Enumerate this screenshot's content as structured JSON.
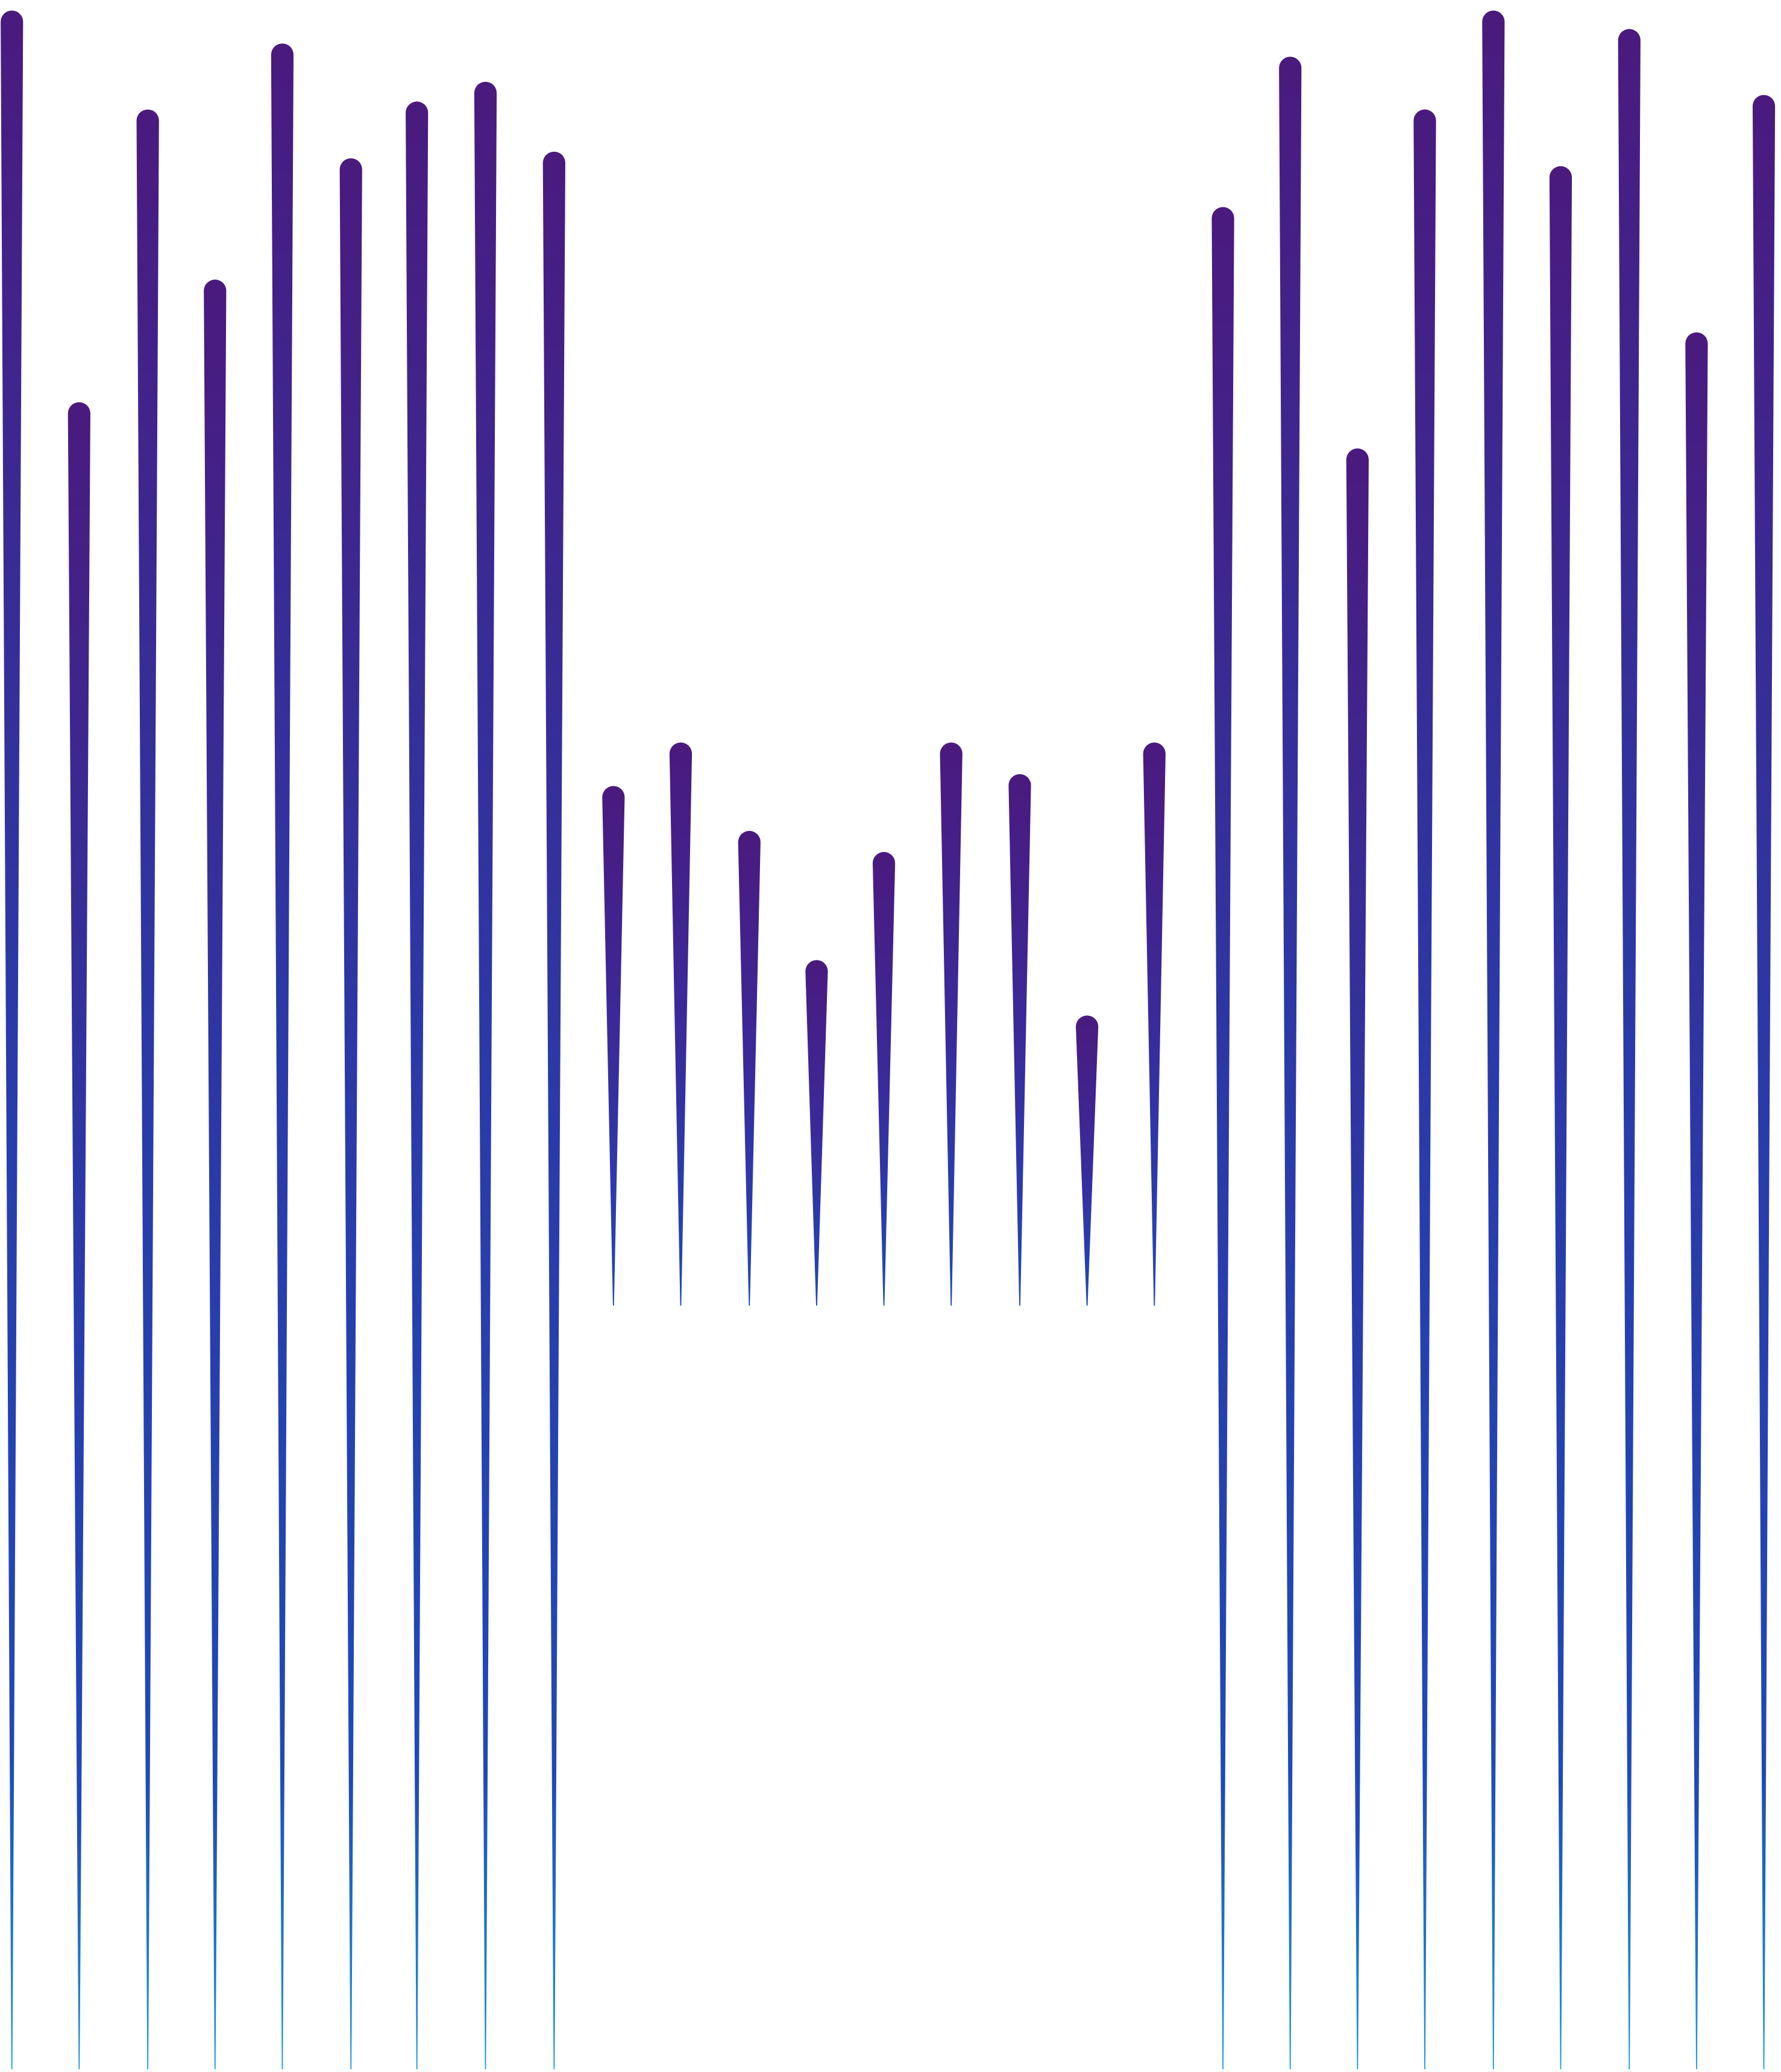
{
  "artwork": {
    "description_colors": {
      "top": "#4a1a7e",
      "mid": "#1e48b4",
      "bottom": "#1a8fd8"
    },
    "groups": [
      {
        "name": "left-tall-group",
        "spike_count": 9
      },
      {
        "name": "center-short-group",
        "spike_count": 9
      },
      {
        "name": "right-tall-group",
        "spike_count": 9
      }
    ]
  }
}
